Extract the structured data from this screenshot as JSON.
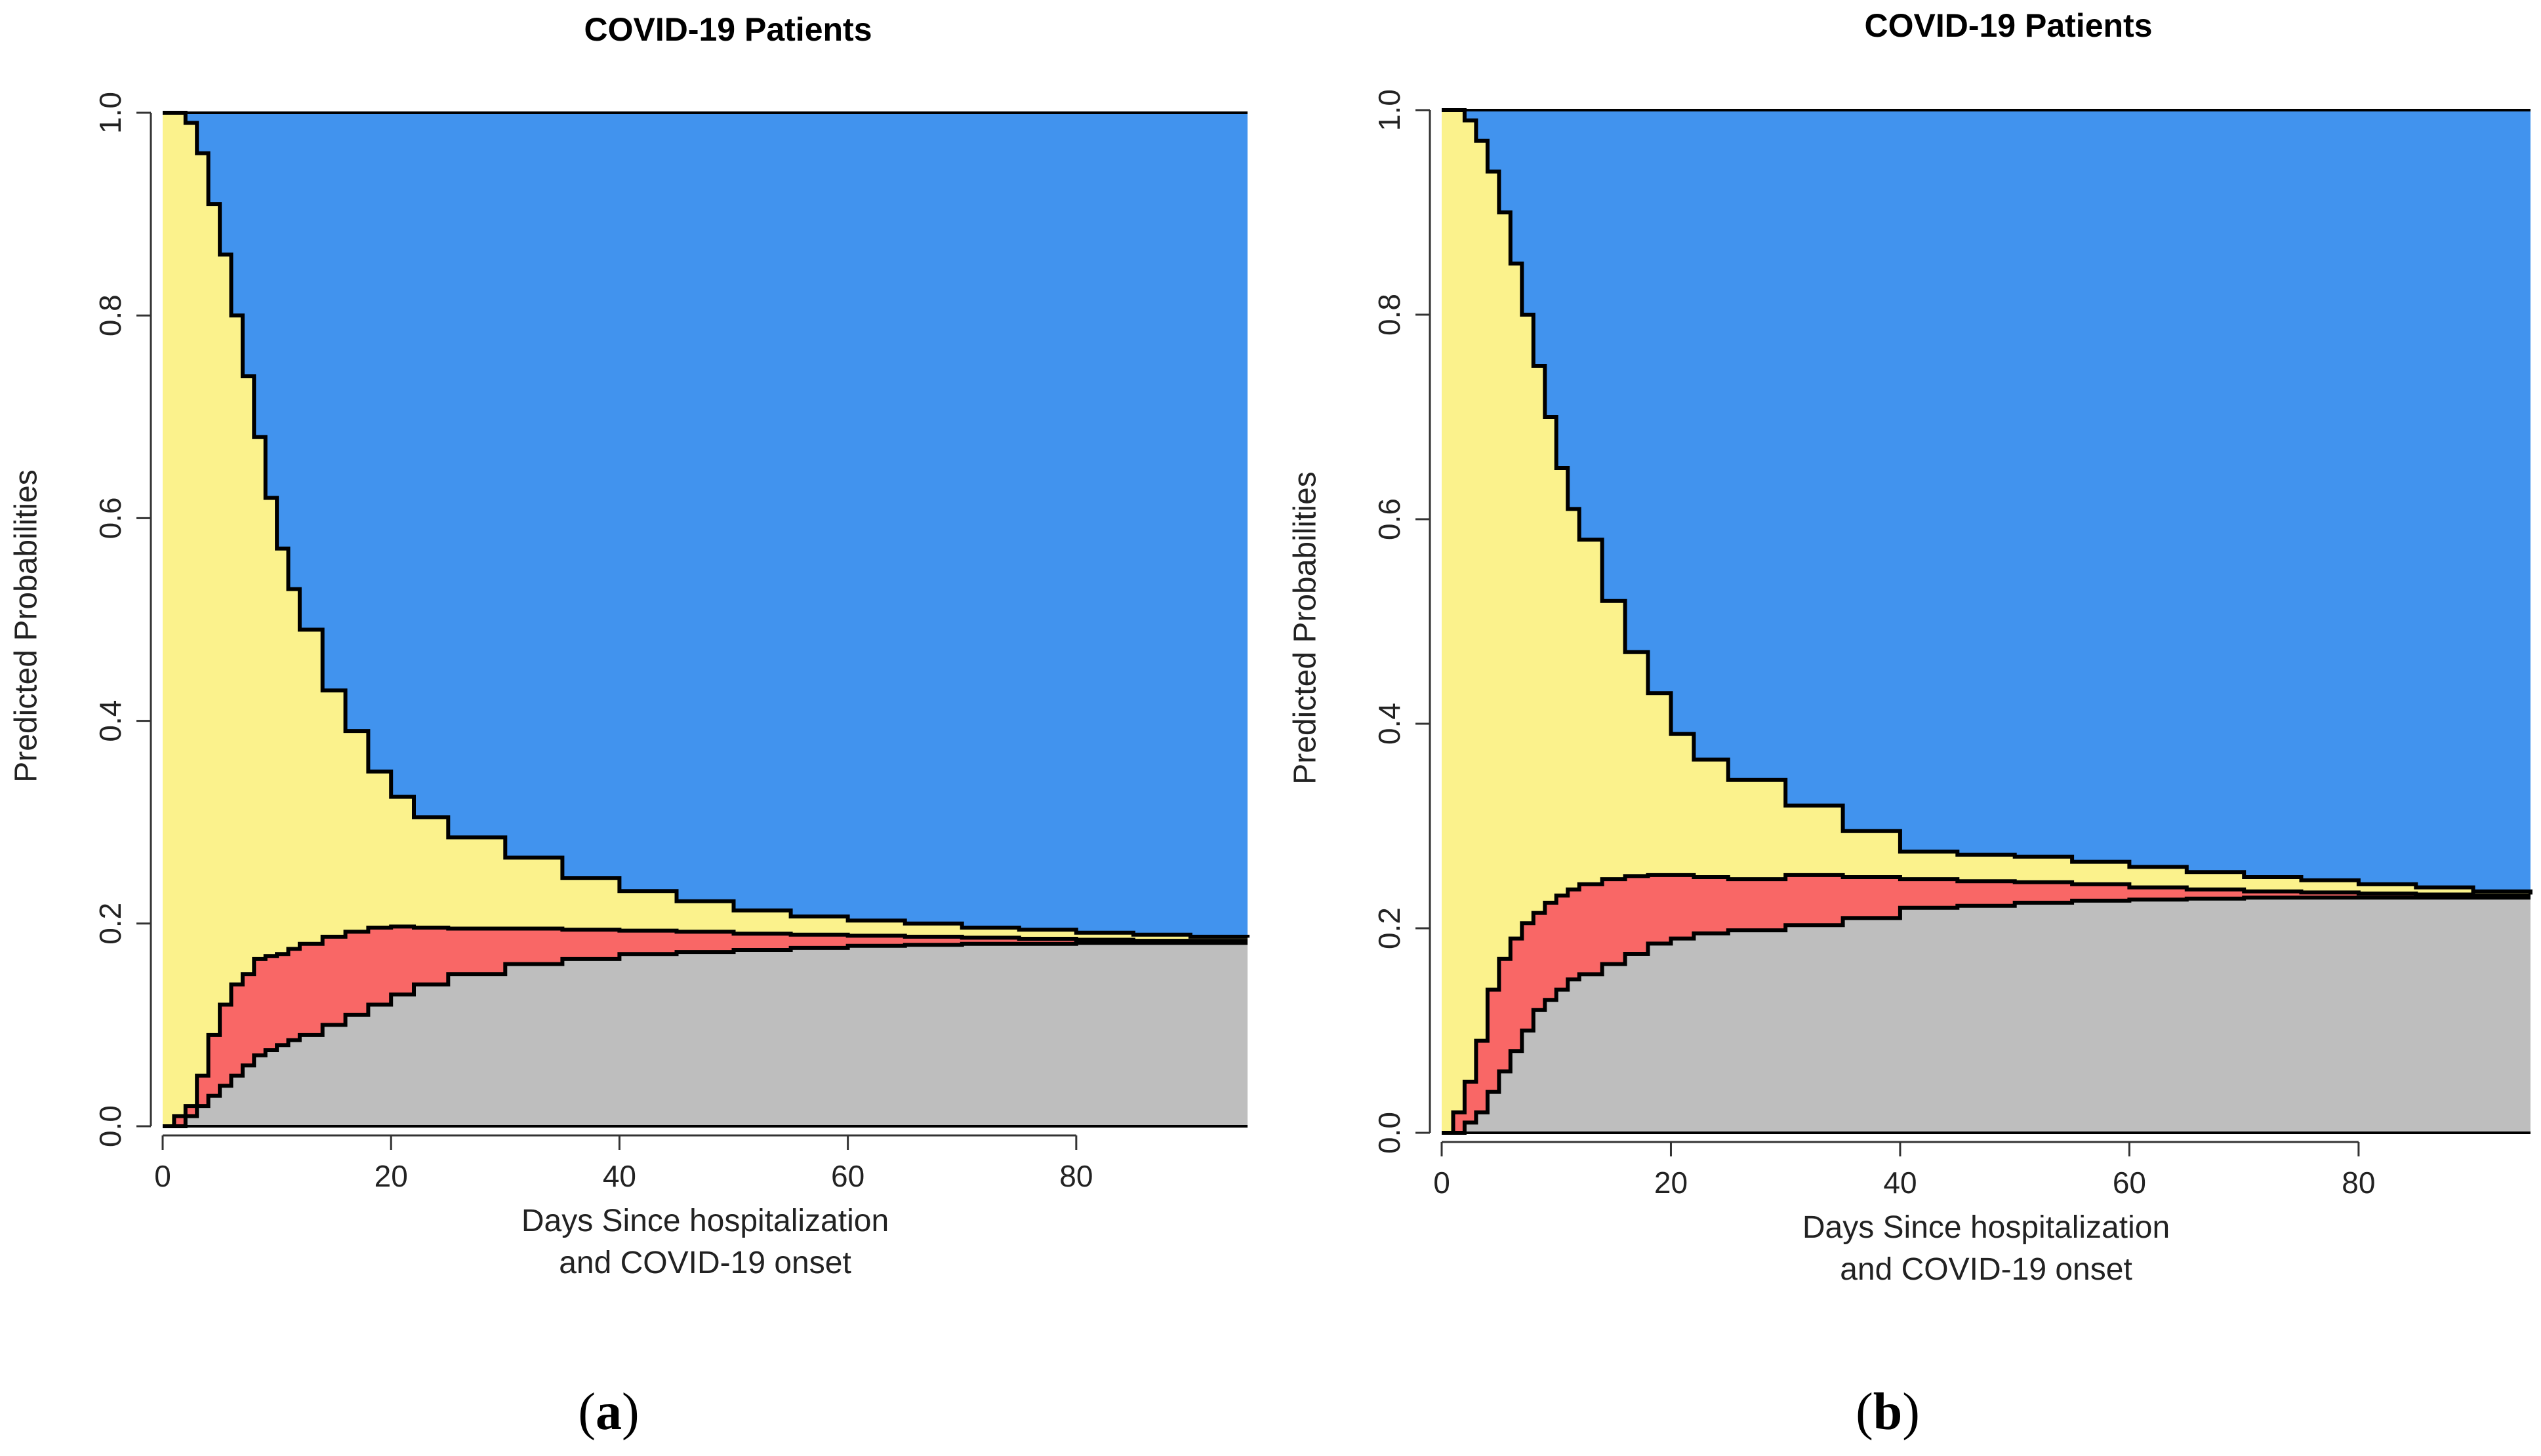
{
  "colors": {
    "blue": "#4193EE",
    "yellow": "#FBF28C",
    "red": "#F96766",
    "gray": "#BEBEBE",
    "outline": "#000000"
  },
  "chart_data": [
    {
      "type": "area",
      "stacked": true,
      "step": true,
      "title": "COVID-19 Patients",
      "xlabel_lines": [
        "Days Since hospitalization",
        "and COVID-19 onset"
      ],
      "ylabel": "Predicted Probabilities",
      "xlim": [
        0,
        95
      ],
      "ylim": [
        0,
        1
      ],
      "xticks": [
        "0",
        "20",
        "40",
        "60",
        "80"
      ],
      "yticks": [
        "0.0",
        "0.2",
        "0.4",
        "0.6",
        "0.8",
        "1.0"
      ],
      "caption_letter": "a",
      "x": [
        0,
        1,
        2,
        3,
        4,
        5,
        6,
        7,
        8,
        9,
        10,
        11,
        12,
        14,
        16,
        18,
        20,
        22,
        25,
        30,
        35,
        40,
        45,
        50,
        55,
        60,
        65,
        70,
        75,
        80,
        85,
        90,
        95
      ],
      "boundaries": [
        {
          "name": "gray_top",
          "values": [
            0.0,
            0.0,
            0.01,
            0.02,
            0.03,
            0.04,
            0.05,
            0.06,
            0.07,
            0.075,
            0.08,
            0.085,
            0.09,
            0.1,
            0.11,
            0.12,
            0.13,
            0.14,
            0.15,
            0.16,
            0.165,
            0.17,
            0.172,
            0.174,
            0.176,
            0.178,
            0.179,
            0.18,
            0.18,
            0.181,
            0.181,
            0.181,
            0.181
          ]
        },
        {
          "name": "red_top",
          "values": [
            0.0,
            0.01,
            0.02,
            0.05,
            0.09,
            0.12,
            0.14,
            0.15,
            0.165,
            0.168,
            0.17,
            0.175,
            0.18,
            0.187,
            0.192,
            0.196,
            0.197,
            0.196,
            0.195,
            0.195,
            0.194,
            0.193,
            0.192,
            0.19,
            0.189,
            0.188,
            0.187,
            0.186,
            0.185,
            0.184,
            0.183,
            0.183,
            0.183
          ]
        },
        {
          "name": "yellow_top",
          "values": [
            1.0,
            1.0,
            0.99,
            0.96,
            0.91,
            0.86,
            0.8,
            0.74,
            0.68,
            0.62,
            0.57,
            0.53,
            0.49,
            0.43,
            0.39,
            0.35,
            0.325,
            0.305,
            0.285,
            0.265,
            0.245,
            0.232,
            0.222,
            0.213,
            0.207,
            0.203,
            0.2,
            0.196,
            0.194,
            0.191,
            0.189,
            0.187,
            0.186
          ]
        }
      ],
      "series": [
        {
          "name": "",
          "color": "gray"
        },
        {
          "name": "",
          "color": "red"
        },
        {
          "name": "",
          "color": "yellow"
        },
        {
          "name": "",
          "color": "blue"
        }
      ]
    },
    {
      "type": "area",
      "stacked": true,
      "step": true,
      "title": "COVID-19 Patients",
      "xlabel_lines": [
        "Days Since hospitalization",
        "and COVID-19 onset"
      ],
      "ylabel": "Predicted Probabilities",
      "xlim": [
        0,
        95
      ],
      "ylim": [
        0,
        1
      ],
      "xticks": [
        "0",
        "20",
        "40",
        "60",
        "80"
      ],
      "yticks": [
        "0.0",
        "0.2",
        "0.4",
        "0.6",
        "0.8",
        "1.0"
      ],
      "caption_letter": "b",
      "x": [
        0,
        1,
        2,
        3,
        4,
        5,
        6,
        7,
        8,
        9,
        10,
        11,
        12,
        14,
        16,
        18,
        20,
        22,
        25,
        30,
        35,
        40,
        45,
        50,
        55,
        60,
        65,
        70,
        75,
        80,
        85,
        90,
        95
      ],
      "boundaries": [
        {
          "name": "gray_top",
          "values": [
            0.0,
            0.0,
            0.01,
            0.02,
            0.04,
            0.06,
            0.08,
            0.1,
            0.12,
            0.13,
            0.14,
            0.15,
            0.155,
            0.165,
            0.175,
            0.185,
            0.19,
            0.195,
            0.198,
            0.203,
            0.21,
            0.22,
            0.222,
            0.225,
            0.227,
            0.228,
            0.229,
            0.23,
            0.23,
            0.23,
            0.23,
            0.23,
            0.23
          ]
        },
        {
          "name": "red_top",
          "values": [
            0.0,
            0.02,
            0.05,
            0.09,
            0.14,
            0.17,
            0.19,
            0.205,
            0.215,
            0.225,
            0.232,
            0.238,
            0.243,
            0.248,
            0.251,
            0.252,
            0.252,
            0.25,
            0.248,
            0.252,
            0.25,
            0.248,
            0.246,
            0.245,
            0.243,
            0.24,
            0.238,
            0.236,
            0.235,
            0.234,
            0.233,
            0.232,
            0.232
          ]
        },
        {
          "name": "yellow_top",
          "values": [
            1.0,
            1.0,
            0.99,
            0.97,
            0.94,
            0.9,
            0.85,
            0.8,
            0.75,
            0.7,
            0.65,
            0.61,
            0.58,
            0.52,
            0.47,
            0.43,
            0.39,
            0.365,
            0.345,
            0.32,
            0.295,
            0.275,
            0.272,
            0.27,
            0.265,
            0.26,
            0.255,
            0.25,
            0.247,
            0.243,
            0.24,
            0.236,
            0.233
          ]
        }
      ],
      "series": [
        {
          "name": "",
          "color": "gray"
        },
        {
          "name": "",
          "color": "red"
        },
        {
          "name": "",
          "color": "yellow"
        },
        {
          "name": "",
          "color": "blue"
        }
      ]
    }
  ]
}
